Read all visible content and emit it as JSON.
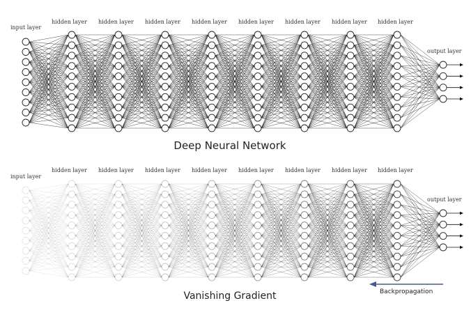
{
  "colors": {
    "line": "#111111",
    "node_stroke": "#222222",
    "background": "#ffffff",
    "backprop_arrow": "#4a5a8a"
  },
  "networks": [
    {
      "name": "deep-neural-network",
      "caption": "Deep Neural Network",
      "input_label": "input layer",
      "hidden_label": "hidden layer",
      "output_label": "output layer",
      "layer_sizes": [
        9,
        10,
        10,
        10,
        10,
        10,
        10,
        10,
        10,
        4
      ],
      "layer_opacity": [
        1,
        1,
        1,
        1,
        1,
        1,
        1,
        1,
        1,
        1
      ]
    },
    {
      "name": "vanishing-gradient",
      "caption": "Vanishing Gradient",
      "input_label": "input layer",
      "hidden_label": "hidden layer",
      "output_label": "output layer",
      "layer_sizes": [
        9,
        10,
        10,
        10,
        10,
        10,
        10,
        10,
        10,
        4
      ],
      "layer_opacity": [
        0.12,
        0.16,
        0.2,
        0.26,
        0.34,
        0.45,
        0.58,
        0.72,
        0.88,
        1
      ]
    }
  ],
  "backpropagation": {
    "label": "Backpropagation",
    "direction": "right-to-left"
  }
}
